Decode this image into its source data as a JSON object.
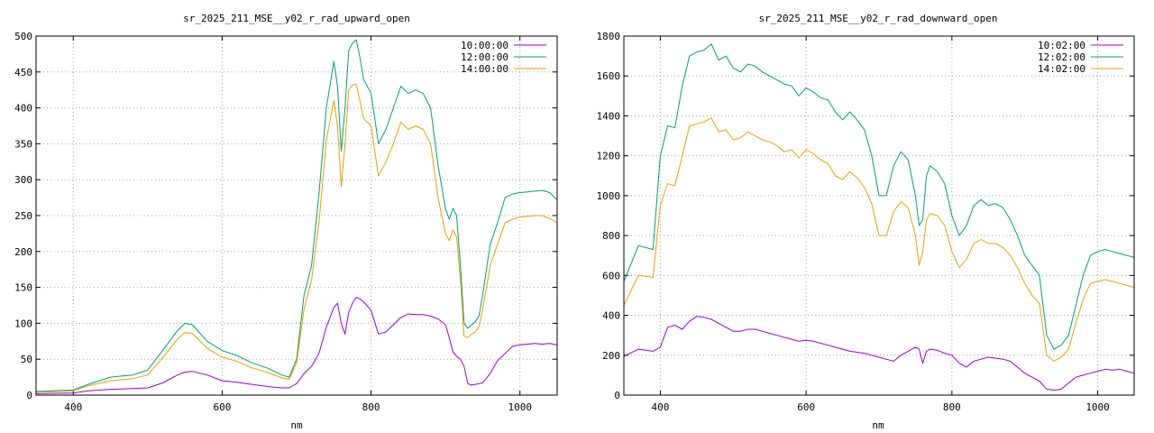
{
  "chart_data": [
    {
      "type": "line",
      "title": "sr_2025_211_MSE__y02_r_rad_upward_open",
      "xlabel": "nm",
      "ylabel": "",
      "xlim": [
        350,
        1050
      ],
      "ylim": [
        0,
        500
      ],
      "xticks": [
        400,
        600,
        800,
        1000
      ],
      "yticks": [
        0,
        50,
        100,
        150,
        200,
        250,
        300,
        350,
        400,
        450,
        500
      ],
      "grid": true,
      "legend_position": "top-right",
      "series": [
        {
          "name": "10:00:00",
          "color": "#9400d3",
          "x": [
            350,
            400,
            420,
            450,
            480,
            500,
            520,
            540,
            550,
            560,
            580,
            600,
            620,
            640,
            660,
            680,
            690,
            700,
            710,
            720,
            730,
            740,
            750,
            755,
            760,
            765,
            770,
            775,
            780,
            785,
            790,
            800,
            810,
            820,
            830,
            840,
            850,
            860,
            870,
            880,
            890,
            900,
            905,
            910,
            915,
            920,
            925,
            930,
            935,
            940,
            945,
            950,
            960,
            970,
            980,
            990,
            1000,
            1010,
            1020,
            1030,
            1040,
            1050
          ],
          "y": [
            2,
            3,
            6,
            8,
            9,
            10,
            17,
            28,
            32,
            33,
            28,
            20,
            18,
            15,
            12,
            10,
            10,
            16,
            30,
            40,
            58,
            95,
            122,
            128,
            100,
            85,
            115,
            128,
            136,
            134,
            130,
            118,
            85,
            88,
            98,
            108,
            113,
            112,
            112,
            110,
            106,
            98,
            80,
            60,
            54,
            50,
            40,
            16,
            14,
            15,
            16,
            17,
            30,
            48,
            58,
            68,
            70,
            71,
            72,
            71,
            72,
            70
          ]
        },
        {
          "name": "12:00:00",
          "color": "#009e73",
          "x": [
            350,
            400,
            420,
            450,
            480,
            500,
            520,
            540,
            550,
            560,
            580,
            600,
            620,
            640,
            660,
            680,
            690,
            700,
            710,
            720,
            730,
            740,
            750,
            755,
            760,
            765,
            770,
            775,
            780,
            785,
            790,
            800,
            810,
            820,
            830,
            840,
            850,
            860,
            870,
            880,
            890,
            900,
            905,
            910,
            915,
            920,
            925,
            930,
            935,
            940,
            945,
            950,
            960,
            970,
            980,
            990,
            1000,
            1010,
            1020,
            1030,
            1040,
            1050
          ],
          "y": [
            5,
            7,
            15,
            25,
            28,
            35,
            62,
            90,
            100,
            98,
            75,
            62,
            55,
            45,
            38,
            28,
            25,
            50,
            140,
            180,
            280,
            400,
            465,
            430,
            340,
            400,
            480,
            490,
            495,
            470,
            440,
            420,
            350,
            370,
            400,
            430,
            420,
            425,
            420,
            400,
            320,
            260,
            245,
            260,
            250,
            180,
            100,
            93,
            98,
            102,
            110,
            140,
            210,
            240,
            275,
            280,
            282,
            283,
            284,
            285,
            282,
            272
          ]
        },
        {
          "name": "14:00:00",
          "color": "#e69f00",
          "x": [
            350,
            400,
            420,
            450,
            480,
            500,
            520,
            540,
            550,
            560,
            580,
            600,
            620,
            640,
            660,
            680,
            690,
            700,
            710,
            720,
            730,
            740,
            750,
            755,
            760,
            765,
            770,
            775,
            780,
            785,
            790,
            800,
            810,
            820,
            830,
            840,
            850,
            860,
            870,
            880,
            890,
            900,
            905,
            910,
            915,
            920,
            925,
            930,
            935,
            940,
            945,
            950,
            960,
            970,
            980,
            990,
            1000,
            1010,
            1020,
            1030,
            1040,
            1050
          ],
          "y": [
            4,
            6,
            13,
            20,
            23,
            28,
            52,
            78,
            87,
            86,
            65,
            53,
            47,
            38,
            32,
            24,
            22,
            45,
            120,
            160,
            240,
            355,
            410,
            375,
            290,
            350,
            425,
            432,
            433,
            410,
            385,
            375,
            305,
            325,
            350,
            380,
            370,
            375,
            370,
            350,
            275,
            225,
            215,
            230,
            220,
            160,
            82,
            80,
            85,
            88,
            95,
            120,
            180,
            210,
            240,
            245,
            248,
            249,
            250,
            250,
            246,
            240
          ]
        }
      ]
    },
    {
      "type": "line",
      "title": "sr_2025_211_MSE__y02_r_rad_downward_open",
      "xlabel": "nm",
      "ylabel": "",
      "xlim": [
        350,
        1050
      ],
      "ylim": [
        0,
        1800
      ],
      "xticks": [
        400,
        600,
        800,
        1000
      ],
      "yticks": [
        0,
        200,
        400,
        600,
        800,
        1000,
        1200,
        1400,
        1600,
        1800
      ],
      "grid": true,
      "legend_position": "top-right",
      "series": [
        {
          "name": "10:02:00",
          "color": "#9400d3",
          "x": [
            350,
            370,
            390,
            400,
            410,
            420,
            430,
            440,
            450,
            460,
            470,
            480,
            490,
            500,
            510,
            520,
            530,
            540,
            550,
            560,
            570,
            580,
            590,
            600,
            610,
            620,
            630,
            640,
            650,
            660,
            670,
            680,
            690,
            700,
            710,
            720,
            730,
            740,
            750,
            755,
            760,
            765,
            770,
            780,
            790,
            800,
            810,
            820,
            830,
            840,
            850,
            860,
            870,
            880,
            890,
            900,
            910,
            920,
            930,
            940,
            950,
            960,
            970,
            980,
            990,
            1000,
            1010,
            1020,
            1030,
            1040,
            1050
          ],
          "y": [
            195,
            230,
            220,
            240,
            340,
            350,
            330,
            370,
            395,
            390,
            380,
            360,
            340,
            320,
            320,
            330,
            330,
            320,
            310,
            300,
            290,
            280,
            270,
            275,
            270,
            260,
            250,
            240,
            230,
            220,
            215,
            210,
            200,
            190,
            180,
            170,
            200,
            220,
            240,
            230,
            160,
            220,
            230,
            225,
            210,
            200,
            160,
            140,
            170,
            180,
            190,
            185,
            180,
            170,
            140,
            110,
            90,
            70,
            30,
            25,
            30,
            60,
            90,
            100,
            110,
            120,
            130,
            125,
            130,
            120,
            110
          ]
        },
        {
          "name": "12:02:00",
          "color": "#009e73",
          "x": [
            350,
            370,
            390,
            400,
            410,
            420,
            430,
            440,
            450,
            460,
            470,
            480,
            490,
            500,
            510,
            520,
            530,
            540,
            550,
            560,
            570,
            580,
            590,
            600,
            610,
            620,
            630,
            640,
            650,
            660,
            670,
            680,
            690,
            700,
            710,
            720,
            730,
            740,
            750,
            755,
            760,
            765,
            770,
            780,
            790,
            800,
            810,
            820,
            830,
            840,
            850,
            860,
            870,
            880,
            890,
            900,
            910,
            920,
            930,
            940,
            950,
            960,
            970,
            980,
            990,
            1000,
            1010,
            1020,
            1030,
            1040,
            1050
          ],
          "y": [
            570,
            750,
            730,
            1200,
            1350,
            1340,
            1550,
            1700,
            1720,
            1730,
            1760,
            1680,
            1700,
            1640,
            1620,
            1660,
            1650,
            1620,
            1600,
            1580,
            1560,
            1550,
            1500,
            1540,
            1520,
            1490,
            1480,
            1420,
            1380,
            1420,
            1380,
            1330,
            1200,
            1000,
            1000,
            1150,
            1220,
            1180,
            1000,
            850,
            880,
            1100,
            1150,
            1120,
            1060,
            900,
            800,
            850,
            950,
            980,
            950,
            960,
            940,
            880,
            800,
            700,
            650,
            600,
            300,
            230,
            250,
            300,
            450,
            600,
            700,
            720,
            730,
            720,
            710,
            700,
            690
          ]
        },
        {
          "name": "14:02:00",
          "color": "#e69f00",
          "x": [
            350,
            370,
            390,
            400,
            410,
            420,
            430,
            440,
            450,
            460,
            470,
            480,
            490,
            500,
            510,
            520,
            530,
            540,
            550,
            560,
            570,
            580,
            590,
            600,
            610,
            620,
            630,
            640,
            650,
            660,
            670,
            680,
            690,
            700,
            710,
            720,
            730,
            740,
            750,
            755,
            760,
            765,
            770,
            780,
            790,
            800,
            810,
            820,
            830,
            840,
            850,
            860,
            870,
            880,
            890,
            900,
            910,
            920,
            930,
            940,
            950,
            960,
            970,
            980,
            990,
            1000,
            1010,
            1020,
            1030,
            1040,
            1050
          ],
          "y": [
            450,
            600,
            590,
            950,
            1060,
            1050,
            1200,
            1350,
            1360,
            1370,
            1390,
            1320,
            1330,
            1280,
            1290,
            1320,
            1300,
            1280,
            1270,
            1250,
            1220,
            1230,
            1190,
            1230,
            1210,
            1180,
            1160,
            1100,
            1080,
            1120,
            1090,
            1040,
            960,
            800,
            800,
            920,
            970,
            940,
            800,
            650,
            720,
            880,
            910,
            900,
            850,
            720,
            640,
            680,
            760,
            780,
            760,
            760,
            740,
            700,
            640,
            560,
            500,
            460,
            200,
            170,
            190,
            230,
            360,
            480,
            560,
            570,
            580,
            570,
            560,
            550,
            540
          ]
        }
      ]
    }
  ]
}
